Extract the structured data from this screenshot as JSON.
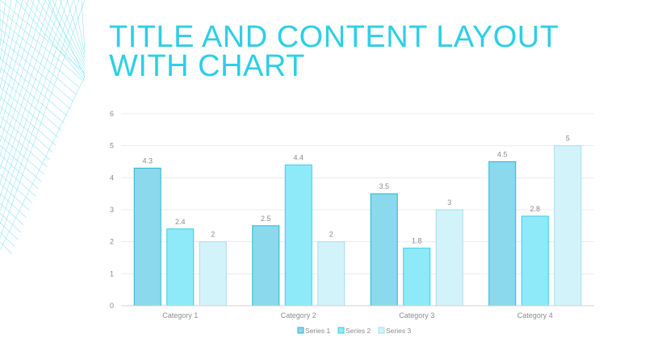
{
  "slide": {
    "title_line1": "TITLE AND CONTENT LAYOUT",
    "title_line2": "WITH CHART"
  },
  "colors": {
    "title": "#2ccfe6",
    "gridline": "#ececec",
    "axis": "#d0d0d0",
    "decoration": "#7fe3ef"
  },
  "chart_data": {
    "type": "bar",
    "title": "",
    "xlabel": "",
    "ylabel": "",
    "categories": [
      "Category 1",
      "Category 2",
      "Category 3",
      "Category 4"
    ],
    "series": [
      {
        "name": "Series 1",
        "values": [
          4.3,
          2.5,
          3.5,
          4.5
        ],
        "fill": "#8ad9ec",
        "stroke": "#2bb5d3"
      },
      {
        "name": "Series 2",
        "values": [
          2.4,
          4.4,
          1.8,
          2.8
        ],
        "fill": "#8eeaf9",
        "stroke": "#34cfe8"
      },
      {
        "name": "Series 3",
        "values": [
          2,
          2,
          3,
          5
        ],
        "fill": "#d3f3fa",
        "stroke": "#9ee0ee"
      }
    ],
    "data_labels": [
      [
        "4.3",
        "2.5",
        "3.5",
        "4.5"
      ],
      [
        "2.4",
        "4.4",
        "1.8",
        "2.8"
      ],
      [
        "2",
        "2",
        "3",
        "5"
      ]
    ],
    "ylim": [
      0,
      6
    ],
    "yticks": [
      "0",
      "1",
      "2",
      "3",
      "4",
      "5",
      "6"
    ],
    "grid": true,
    "legend": "bottom"
  }
}
